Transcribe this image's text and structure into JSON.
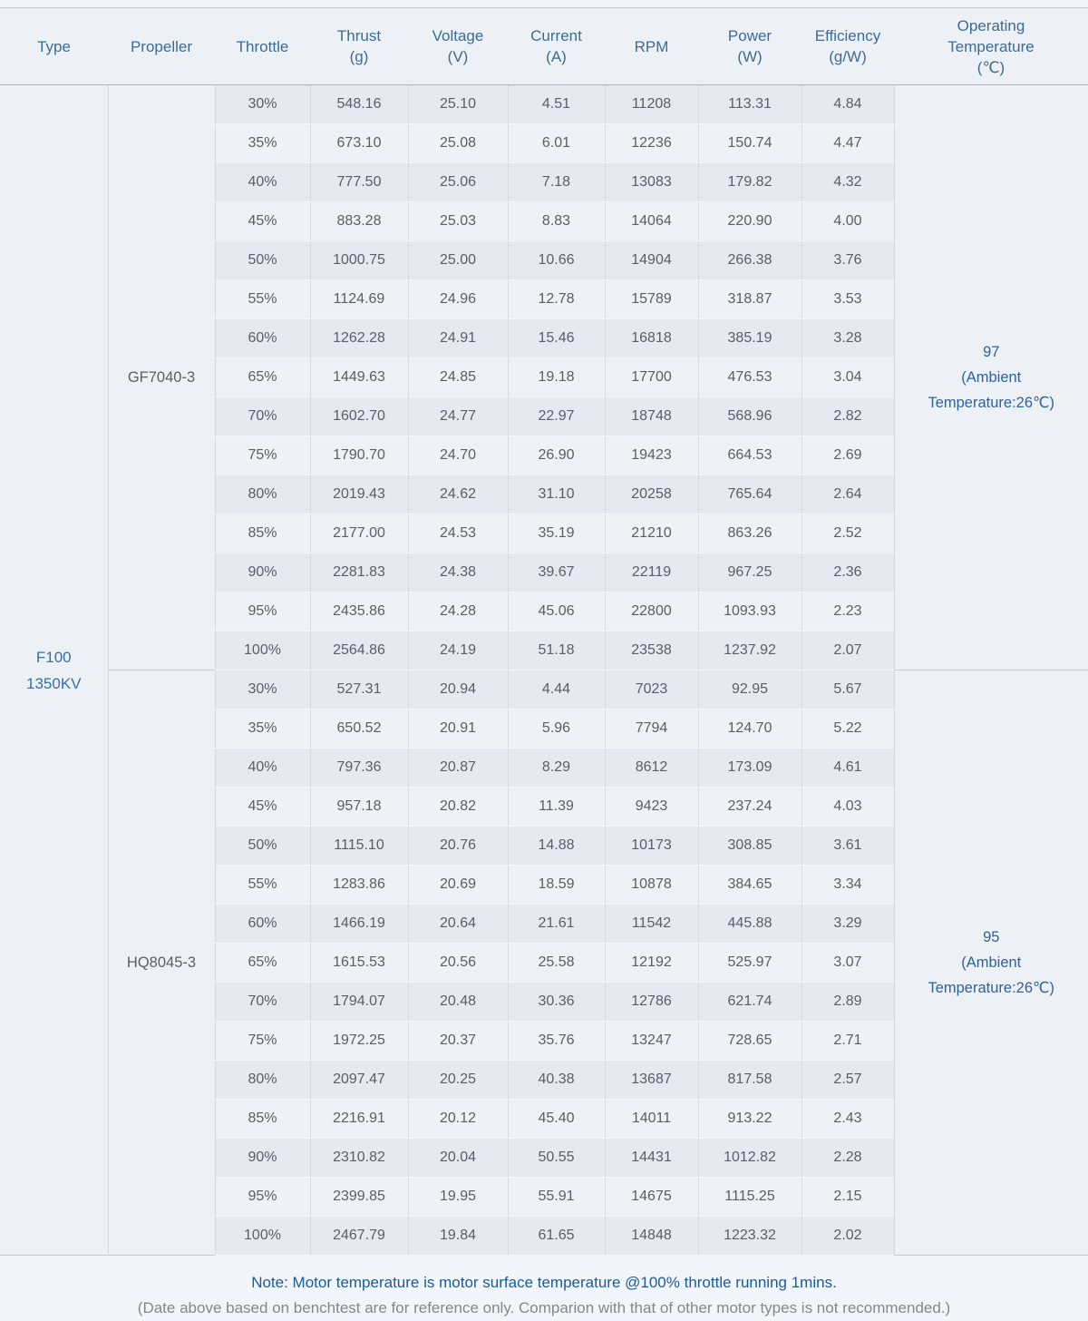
{
  "chart_data": {
    "type": "table",
    "title": "Motor benchtest data table",
    "columns": [
      "Type",
      "Propeller",
      "Throttle",
      "Thrust\n(g)",
      "Voltage\n(V)",
      "Current\n(A)",
      "RPM",
      "Power\n(W)",
      "Efficiency\n(g/W)",
      "Operating\nTemperature\n(℃)"
    ],
    "type_cell": "F100\n1350KV",
    "sections": [
      {
        "propeller": "GF7040-3",
        "temperature": "97\n(Ambient\nTemperature:26℃)",
        "rows": [
          {
            "throttle": "30%",
            "thrust": "548.16",
            "voltage": "25.10",
            "current": "4.51",
            "rpm": "11208",
            "power": "113.31",
            "efficiency": "4.84"
          },
          {
            "throttle": "35%",
            "thrust": "673.10",
            "voltage": "25.08",
            "current": "6.01",
            "rpm": "12236",
            "power": "150.74",
            "efficiency": "4.47"
          },
          {
            "throttle": "40%",
            "thrust": "777.50",
            "voltage": "25.06",
            "current": "7.18",
            "rpm": "13083",
            "power": "179.82",
            "efficiency": "4.32"
          },
          {
            "throttle": "45%",
            "thrust": "883.28",
            "voltage": "25.03",
            "current": "8.83",
            "rpm": "14064",
            "power": "220.90",
            "efficiency": "4.00"
          },
          {
            "throttle": "50%",
            "thrust": "1000.75",
            "voltage": "25.00",
            "current": "10.66",
            "rpm": "14904",
            "power": "266.38",
            "efficiency": "3.76"
          },
          {
            "throttle": "55%",
            "thrust": "1124.69",
            "voltage": "24.96",
            "current": "12.78",
            "rpm": "15789",
            "power": "318.87",
            "efficiency": "3.53"
          },
          {
            "throttle": "60%",
            "thrust": "1262.28",
            "voltage": "24.91",
            "current": "15.46",
            "rpm": "16818",
            "power": "385.19",
            "efficiency": "3.28"
          },
          {
            "throttle": "65%",
            "thrust": "1449.63",
            "voltage": "24.85",
            "current": "19.18",
            "rpm": "17700",
            "power": "476.53",
            "efficiency": "3.04"
          },
          {
            "throttle": "70%",
            "thrust": "1602.70",
            "voltage": "24.77",
            "current": "22.97",
            "rpm": "18748",
            "power": "568.96",
            "efficiency": "2.82"
          },
          {
            "throttle": "75%",
            "thrust": "1790.70",
            "voltage": "24.70",
            "current": "26.90",
            "rpm": "19423",
            "power": "664.53",
            "efficiency": "2.69"
          },
          {
            "throttle": "80%",
            "thrust": "2019.43",
            "voltage": "24.62",
            "current": "31.10",
            "rpm": "20258",
            "power": "765.64",
            "efficiency": "2.64"
          },
          {
            "throttle": "85%",
            "thrust": "2177.00",
            "voltage": "24.53",
            "current": "35.19",
            "rpm": "21210",
            "power": "863.26",
            "efficiency": "2.52"
          },
          {
            "throttle": "90%",
            "thrust": "2281.83",
            "voltage": "24.38",
            "current": "39.67",
            "rpm": "22119",
            "power": "967.25",
            "efficiency": "2.36"
          },
          {
            "throttle": "95%",
            "thrust": "2435.86",
            "voltage": "24.28",
            "current": "45.06",
            "rpm": "22800",
            "power": "1093.93",
            "efficiency": "2.23"
          },
          {
            "throttle": "100%",
            "thrust": "2564.86",
            "voltage": "24.19",
            "current": "51.18",
            "rpm": "23538",
            "power": "1237.92",
            "efficiency": "2.07"
          }
        ]
      },
      {
        "propeller": "HQ8045-3",
        "temperature": "95\n(Ambient\nTemperature:26℃)",
        "rows": [
          {
            "throttle": "30%",
            "thrust": "527.31",
            "voltage": "20.94",
            "current": "4.44",
            "rpm": "7023",
            "power": "92.95",
            "efficiency": "5.67"
          },
          {
            "throttle": "35%",
            "thrust": "650.52",
            "voltage": "20.91",
            "current": "5.96",
            "rpm": "7794",
            "power": "124.70",
            "efficiency": "5.22"
          },
          {
            "throttle": "40%",
            "thrust": "797.36",
            "voltage": "20.87",
            "current": "8.29",
            "rpm": "8612",
            "power": "173.09",
            "efficiency": "4.61"
          },
          {
            "throttle": "45%",
            "thrust": "957.18",
            "voltage": "20.82",
            "current": "11.39",
            "rpm": "9423",
            "power": "237.24",
            "efficiency": "4.03"
          },
          {
            "throttle": "50%",
            "thrust": "1115.10",
            "voltage": "20.76",
            "current": "14.88",
            "rpm": "10173",
            "power": "308.85",
            "efficiency": "3.61"
          },
          {
            "throttle": "55%",
            "thrust": "1283.86",
            "voltage": "20.69",
            "current": "18.59",
            "rpm": "10878",
            "power": "384.65",
            "efficiency": "3.34"
          },
          {
            "throttle": "60%",
            "thrust": "1466.19",
            "voltage": "20.64",
            "current": "21.61",
            "rpm": "11542",
            "power": "445.88",
            "efficiency": "3.29"
          },
          {
            "throttle": "65%",
            "thrust": "1615.53",
            "voltage": "20.56",
            "current": "25.58",
            "rpm": "12192",
            "power": "525.97",
            "efficiency": "3.07"
          },
          {
            "throttle": "70%",
            "thrust": "1794.07",
            "voltage": "20.48",
            "current": "30.36",
            "rpm": "12786",
            "power": "621.74",
            "efficiency": "2.89"
          },
          {
            "throttle": "75%",
            "thrust": "1972.25",
            "voltage": "20.37",
            "current": "35.76",
            "rpm": "13247",
            "power": "728.65",
            "efficiency": "2.71"
          },
          {
            "throttle": "80%",
            "thrust": "2097.47",
            "voltage": "20.25",
            "current": "40.38",
            "rpm": "13687",
            "power": "817.58",
            "efficiency": "2.57"
          },
          {
            "throttle": "85%",
            "thrust": "2216.91",
            "voltage": "20.12",
            "current": "45.40",
            "rpm": "14011",
            "power": "913.22",
            "efficiency": "2.43"
          },
          {
            "throttle": "90%",
            "thrust": "2310.82",
            "voltage": "20.04",
            "current": "50.55",
            "rpm": "14431",
            "power": "1012.82",
            "efficiency": "2.28"
          },
          {
            "throttle": "95%",
            "thrust": "2399.85",
            "voltage": "19.95",
            "current": "55.91",
            "rpm": "14675",
            "power": "1115.25",
            "efficiency": "2.15"
          },
          {
            "throttle": "100%",
            "thrust": "2467.79",
            "voltage": "19.84",
            "current": "61.65",
            "rpm": "14848",
            "power": "1223.32",
            "efficiency": "2.02"
          }
        ]
      }
    ]
  },
  "note": {
    "line1": "Note: Motor temperature is motor surface temperature @100% throttle running 1mins.",
    "line2": "(Date above based on benchtest are for reference only. Comparion with that of other motor types is not recommended.)"
  },
  "colors": {
    "page_background": "#f2f5f9",
    "header_text": "#3c6b93",
    "data_text": "#585f66",
    "type_text": "#3470a8",
    "temperature_text": "#2d629c",
    "note_primary": "#1c5a99",
    "note_secondary": "#82888f",
    "row_stripe_dark": "#e6e9ef",
    "row_stripe_light": "#eef1f6"
  }
}
